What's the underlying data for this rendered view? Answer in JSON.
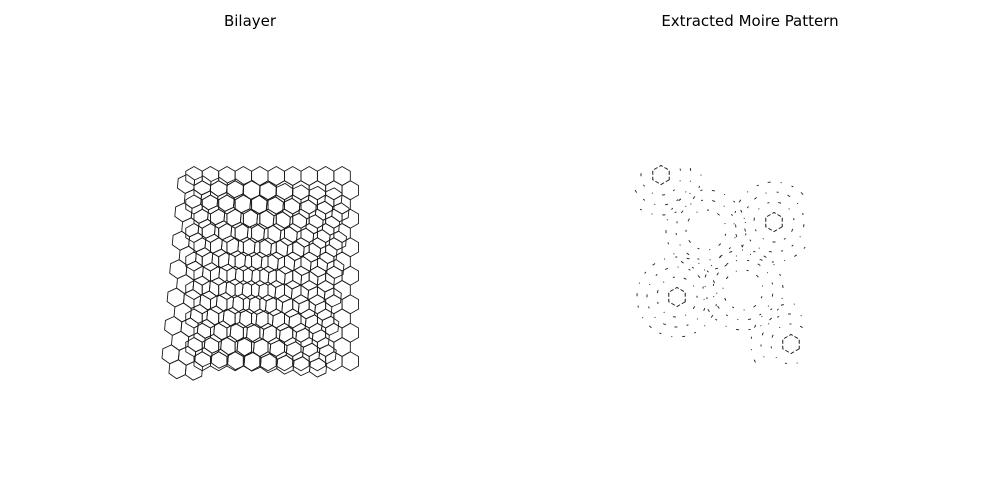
{
  "figure": {
    "left_title": "Bilayer",
    "right_title": "Extracted Moire Pattern"
  },
  "chart_data": {
    "type": "lattice-diagram",
    "description_of_layers": "two overlaid honeycomb lattices with a small relative rotation",
    "stroke_color": "#1a1a1a",
    "background_color": "#ffffff"
  }
}
